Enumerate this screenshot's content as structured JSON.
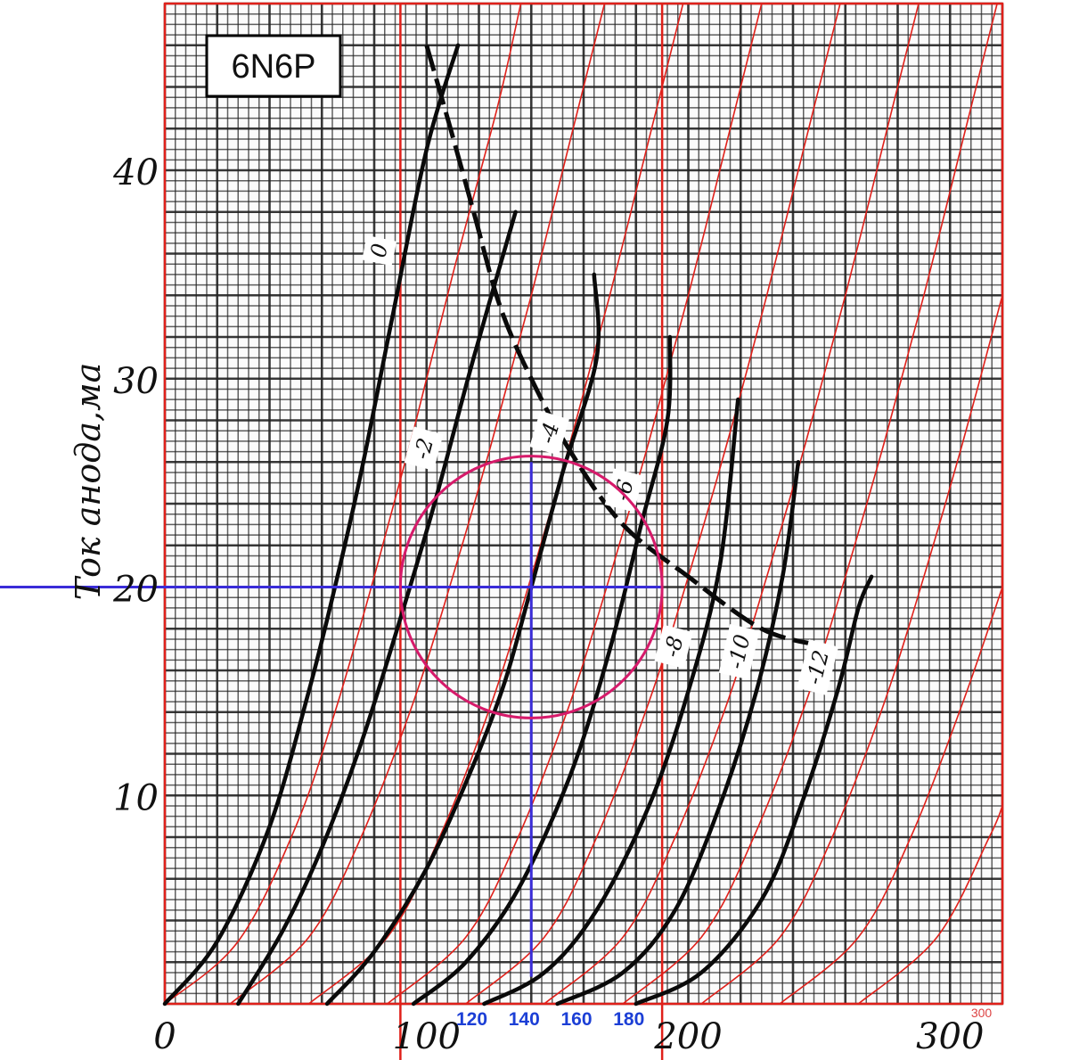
{
  "chart_data": {
    "type": "line",
    "title": "6N6P",
    "xlabel": "",
    "ylabel": "Ток анода,ма",
    "xlim": [
      0,
      320
    ],
    "ylim": [
      0,
      48
    ],
    "x_ticks": [
      "0",
      "100",
      "200",
      "300"
    ],
    "y_ticks": [
      "10",
      "20",
      "30",
      "40"
    ],
    "blue_ticks": [
      {
        "x": 120,
        "label": "120"
      },
      {
        "x": 140,
        "label": "140"
      },
      {
        "x": 160,
        "label": "160"
      },
      {
        "x": 180,
        "label": "180"
      }
    ],
    "faint_tick": {
      "x": 312,
      "label": "300"
    },
    "series": [
      {
        "name": "0",
        "points": [
          [
            0,
            0
          ],
          [
            20,
            3
          ],
          [
            40,
            8.5
          ],
          [
            55,
            15
          ],
          [
            65,
            20
          ],
          [
            75,
            25.5
          ],
          [
            87,
            33
          ],
          [
            100,
            41
          ],
          [
            112,
            46
          ]
        ]
      },
      {
        "name": "-2",
        "points": [
          [
            28,
            0
          ],
          [
            45,
            3.5
          ],
          [
            60,
            7.5
          ],
          [
            75,
            12.5
          ],
          [
            90,
            18.5
          ],
          [
            103,
            24
          ],
          [
            118,
            31
          ],
          [
            134,
            38
          ]
        ]
      },
      {
        "name": "-4",
        "points": [
          [
            62,
            0
          ],
          [
            80,
            2.5
          ],
          [
            100,
            6.5
          ],
          [
            118,
            11.5
          ],
          [
            130,
            15.5
          ],
          [
            140,
            20
          ],
          [
            152,
            25.5
          ],
          [
            165,
            31
          ],
          [
            164,
            35
          ]
        ]
      },
      {
        "name": "-6",
        "points": [
          [
            95,
            0
          ],
          [
            115,
            2
          ],
          [
            135,
            5.5
          ],
          [
            155,
            11
          ],
          [
            170,
            17
          ],
          [
            182,
            23
          ],
          [
            192,
            28
          ],
          [
            193,
            32
          ]
        ]
      },
      {
        "name": "-8",
        "points": [
          [
            122,
            0
          ],
          [
            145,
            1.5
          ],
          [
            165,
            4.5
          ],
          [
            185,
            9.5
          ],
          [
            200,
            15
          ],
          [
            212,
            21
          ],
          [
            219,
            29
          ]
        ]
      },
      {
        "name": "-10",
        "points": [
          [
            150,
            0
          ],
          [
            175,
            1.5
          ],
          [
            195,
            4.5
          ],
          [
            212,
            9.5
          ],
          [
            226,
            15
          ],
          [
            236,
            20.5
          ],
          [
            242,
            26
          ]
        ]
      },
      {
        "name": "-12",
        "points": [
          [
            180,
            0
          ],
          [
            205,
            1.5
          ],
          [
            228,
            5
          ],
          [
            243,
            9.5
          ],
          [
            257,
            15
          ],
          [
            265,
            19
          ],
          [
            270,
            20.5
          ]
        ]
      }
    ],
    "max_dissipation_curve": {
      "points": [
        [
          100,
          46
        ],
        [
          108,
          42.5
        ],
        [
          118,
          38
        ],
        [
          128,
          33.5
        ],
        [
          140,
          30
        ],
        [
          155,
          26.5
        ],
        [
          175,
          23
        ],
        [
          200,
          20.5
        ],
        [
          228,
          18
        ],
        [
          250,
          17.2
        ]
      ]
    },
    "red_reference_curves": [
      {
        "points": [
          [
            0,
            0
          ],
          [
            28,
            3
          ],
          [
            50,
            8.5
          ],
          [
            65,
            14
          ],
          [
            80,
            20.5
          ],
          [
            95,
            27.5
          ],
          [
            110,
            35
          ],
          [
            127,
            43
          ],
          [
            136,
            48
          ]
        ]
      },
      {
        "points": [
          [
            25,
            0
          ],
          [
            55,
            3.2
          ],
          [
            75,
            8
          ],
          [
            95,
            14.5
          ],
          [
            110,
            20.5
          ],
          [
            125,
            27
          ],
          [
            140,
            34
          ],
          [
            155,
            41.5
          ],
          [
            168,
            48
          ]
        ]
      },
      {
        "points": [
          [
            55,
            0
          ],
          [
            85,
            3.2
          ],
          [
            105,
            8
          ],
          [
            125,
            14.5
          ],
          [
            140,
            20.5
          ],
          [
            155,
            27
          ],
          [
            170,
            34
          ],
          [
            185,
            41.5
          ],
          [
            198,
            48
          ]
        ]
      },
      {
        "points": [
          [
            85,
            0
          ],
          [
            115,
            3.2
          ],
          [
            135,
            8
          ],
          [
            155,
            14.5
          ],
          [
            170,
            20.5
          ],
          [
            185,
            27
          ],
          [
            200,
            34
          ],
          [
            215,
            41.5
          ],
          [
            228,
            48
          ]
        ]
      },
      {
        "points": [
          [
            115,
            0
          ],
          [
            145,
            3.2
          ],
          [
            165,
            8
          ],
          [
            185,
            14.5
          ],
          [
            200,
            20.5
          ],
          [
            215,
            27
          ],
          [
            230,
            34
          ],
          [
            245,
            41.5
          ],
          [
            258,
            48
          ]
        ]
      },
      {
        "points": [
          [
            145,
            0
          ],
          [
            175,
            3.2
          ],
          [
            195,
            8
          ],
          [
            215,
            14.5
          ],
          [
            230,
            20.5
          ],
          [
            245,
            27
          ],
          [
            260,
            34
          ],
          [
            275,
            41.5
          ],
          [
            288,
            48
          ]
        ]
      },
      {
        "points": [
          [
            175,
            0
          ],
          [
            205,
            3.2
          ],
          [
            225,
            8
          ],
          [
            245,
            14.5
          ],
          [
            260,
            20.5
          ],
          [
            275,
            27
          ],
          [
            290,
            34
          ],
          [
            305,
            41.5
          ],
          [
            318,
            48
          ]
        ]
      },
      {
        "points": [
          [
            205,
            0
          ],
          [
            235,
            3.2
          ],
          [
            255,
            8
          ],
          [
            275,
            14.5
          ],
          [
            290,
            20.5
          ],
          [
            305,
            27
          ],
          [
            320,
            34
          ]
        ]
      },
      {
        "points": [
          [
            235,
            0
          ],
          [
            265,
            3.2
          ],
          [
            285,
            8
          ],
          [
            305,
            14.5
          ],
          [
            320,
            20
          ]
        ]
      },
      {
        "points": [
          [
            265,
            0
          ],
          [
            295,
            3.2
          ],
          [
            315,
            8
          ],
          [
            320,
            9.5
          ]
        ]
      }
    ],
    "operating_point": {
      "x": 140,
      "y": 20
    },
    "circle": {
      "center_x": 140,
      "center_y": 20,
      "radius_x": 50
    },
    "red_vertical_lines": [
      90,
      190
    ],
    "grid": true,
    "legend": "none"
  }
}
